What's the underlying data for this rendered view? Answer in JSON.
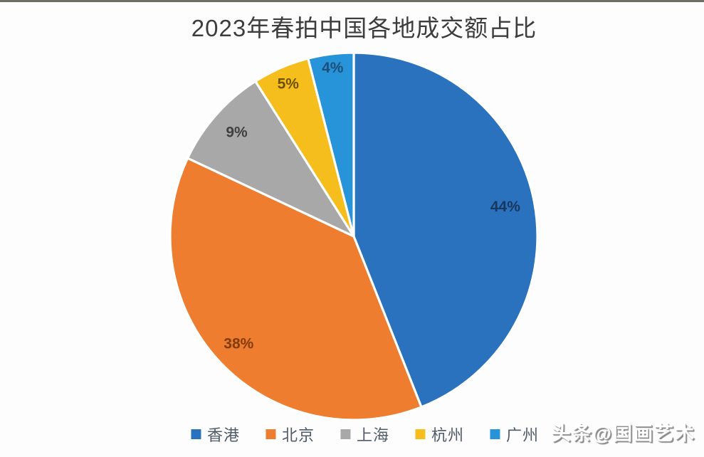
{
  "chart_data": {
    "type": "pie",
    "title": "2023年春拍中国各地成交额占比",
    "unit": "%",
    "start_angle_deg": 0,
    "direction": "clockwise",
    "legend_position": "bottom",
    "slices": [
      {
        "key": "hong-kong",
        "label": "香港",
        "value": 44,
        "display": "44%",
        "color": "#2A72BE",
        "label_color": "#17375E"
      },
      {
        "key": "beijing",
        "label": "北京",
        "value": 38,
        "display": "38%",
        "color": "#EE7D2F",
        "label_color": "#843C0C"
      },
      {
        "key": "shanghai",
        "label": "上海",
        "value": 9,
        "display": "9%",
        "color": "#A8A8A8",
        "label_color": "#404040"
      },
      {
        "key": "hangzhou",
        "label": "杭州",
        "value": 5,
        "display": "5%",
        "color": "#F6BE1D",
        "label_color": "#6d5200"
      },
      {
        "key": "guangzhou",
        "label": "广州",
        "value": 4,
        "display": "4%",
        "color": "#2793D8",
        "label_color": "#1F4E79"
      }
    ]
  },
  "watermark": {
    "text": "头条@国画艺术"
  }
}
